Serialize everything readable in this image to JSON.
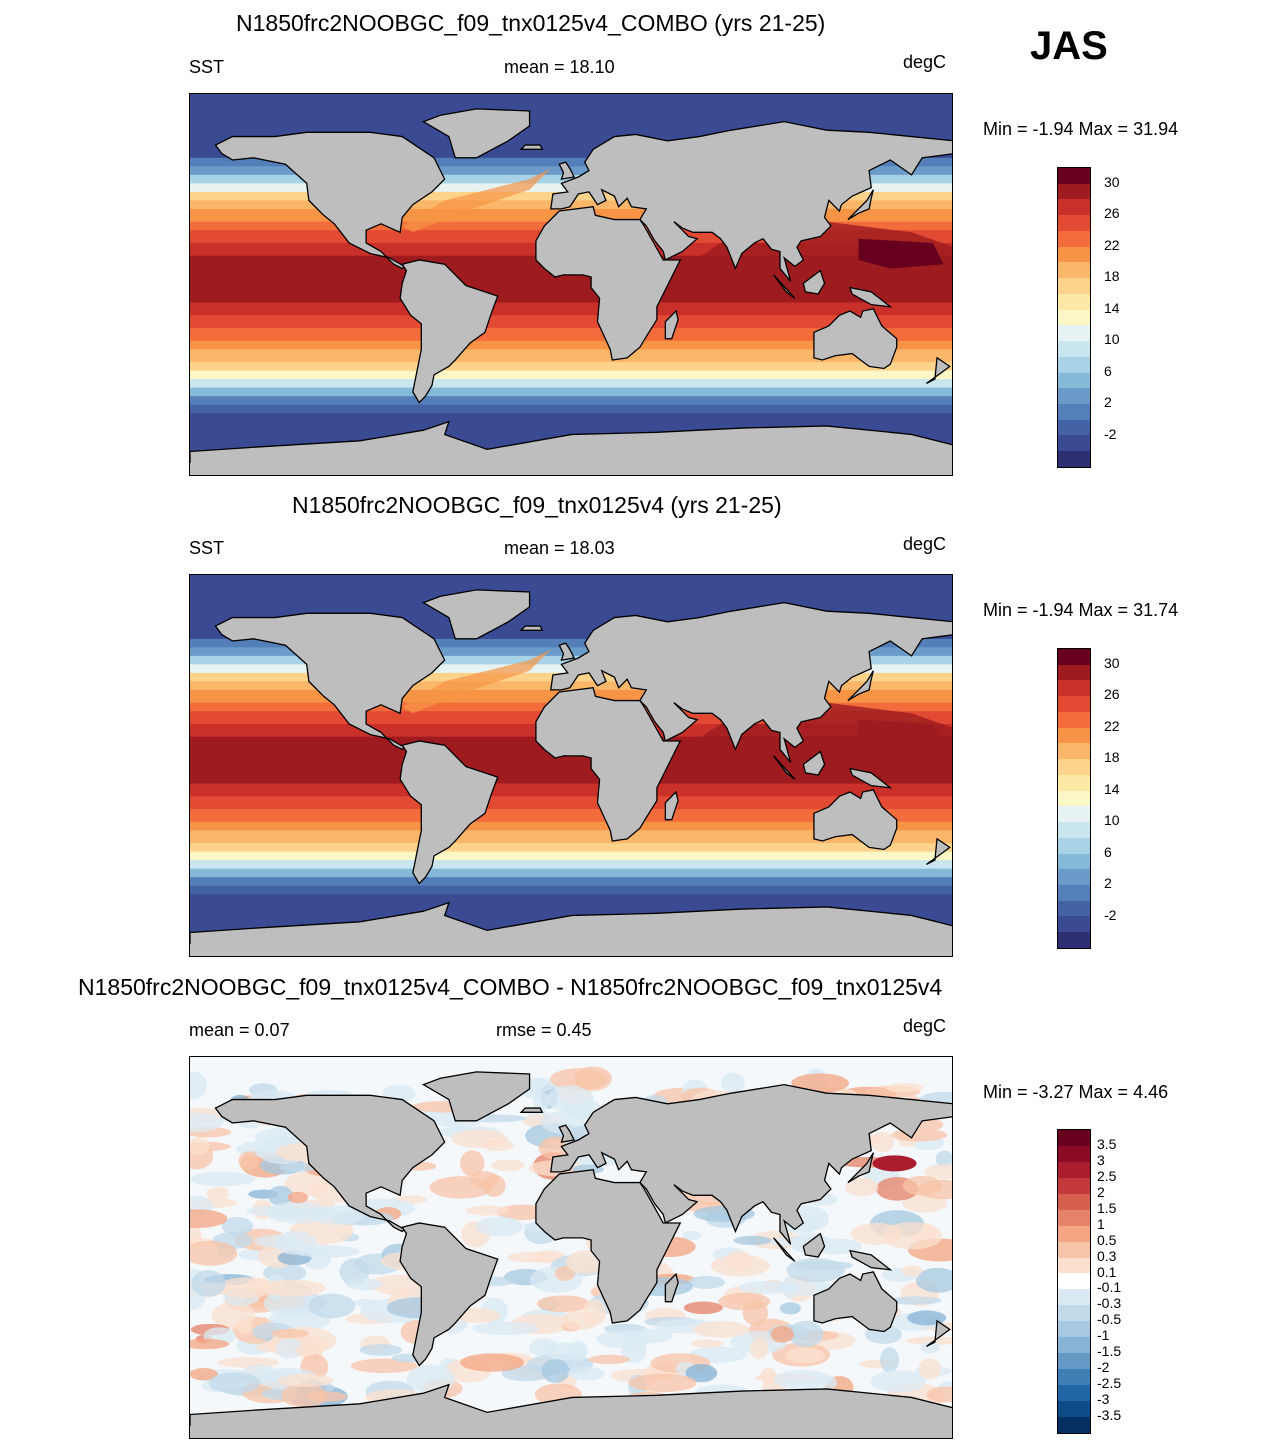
{
  "season": "JAS",
  "panels": [
    {
      "id": "combo",
      "title": "N1850frc2NOOBGC_f09_tnx0125v4_COMBO (yrs 21-25)",
      "left_label": "SST",
      "center_label": "mean =  18.10",
      "units": "degC",
      "minmax": "Min =  -1.94 Max =  31.94",
      "colorbar": {
        "labels": [
          "30",
          "26",
          "22",
          "18",
          "14",
          "10",
          "6",
          "2",
          "-2"
        ],
        "colors": [
          "#67001f",
          "#9e1b1f",
          "#c9302a",
          "#e24a33",
          "#f26c3c",
          "#f79445",
          "#fab769",
          "#fdd38c",
          "#fde9a6",
          "#fbf7c6",
          "#e7f3f3",
          "#c9e6ee",
          "#a8d3e6",
          "#85b9d8",
          "#6a9bc9",
          "#557fb9",
          "#4463a6",
          "#3a4a93",
          "#2e2f73"
        ]
      }
    },
    {
      "id": "base",
      "title": "N1850frc2NOOBGC_f09_tnx0125v4 (yrs 21-25)",
      "left_label": "SST",
      "center_label": "mean =  18.03",
      "units": "degC",
      "minmax": "Min =  -1.94 Max =  31.74",
      "colorbar": {
        "labels": [
          "30",
          "26",
          "22",
          "18",
          "14",
          "10",
          "6",
          "2",
          "-2"
        ],
        "colors": [
          "#67001f",
          "#9e1b1f",
          "#c9302a",
          "#e24a33",
          "#f26c3c",
          "#f79445",
          "#fab769",
          "#fdd38c",
          "#fde9a6",
          "#fbf7c6",
          "#e7f3f3",
          "#c9e6ee",
          "#a8d3e6",
          "#85b9d8",
          "#6a9bc9",
          "#557fb9",
          "#4463a6",
          "#3a4a93",
          "#2e2f73"
        ]
      }
    },
    {
      "id": "diff",
      "title": "N1850frc2NOOBGC_f09_tnx0125v4_COMBO - N1850frc2NOOBGC_f09_tnx0125v4",
      "left_label": "mean =   0.07",
      "center_label": "rmse =   0.45",
      "units": "degC",
      "minmax": "Min =  -3.27 Max =   4.46",
      "colorbar": {
        "labels": [
          "3.5",
          "3",
          "2.5",
          "2",
          "1.5",
          "1",
          "0.5",
          "0.3",
          "0.1",
          "-0.1",
          "-0.3",
          "-0.5",
          "-1",
          "-1.5",
          "-2",
          "-2.5",
          "-3",
          "-3.5"
        ],
        "colors": [
          "#67001f",
          "#8b0a25",
          "#ab1c2e",
          "#c43a3a",
          "#d6604d",
          "#e58267",
          "#f4a582",
          "#f8c4a8",
          "#fbe0cf",
          "#ffffff",
          "#dbe9f3",
          "#c2d9ea",
          "#a6c8e0",
          "#87b3d4",
          "#6399c4",
          "#3f7fb5",
          "#2066a4",
          "#0e4c87",
          "#053061"
        ]
      }
    }
  ]
}
